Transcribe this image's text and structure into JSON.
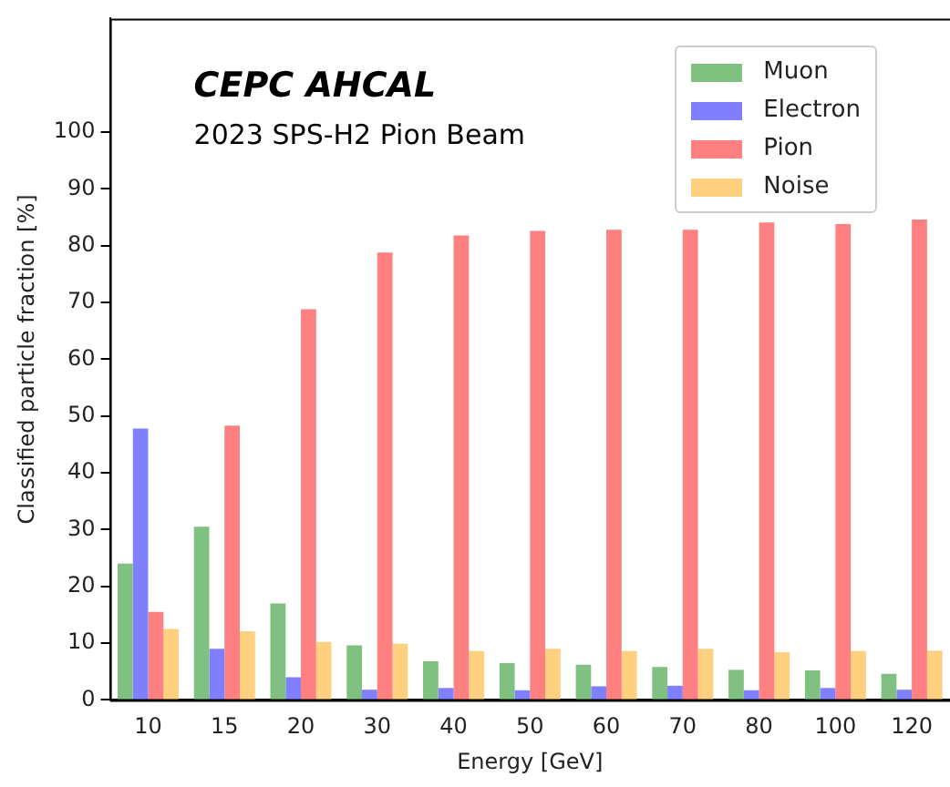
{
  "chart_data": {
    "type": "bar",
    "title": "CEPC AHCAL",
    "subtitle": "2023 SPS-H2 Pion Beam",
    "xlabel": "Energy [GeV]",
    "ylabel": "Classified particle fraction [%]",
    "categories": [
      "10",
      "15",
      "20",
      "30",
      "40",
      "50",
      "60",
      "70",
      "80",
      "100",
      "120"
    ],
    "series": [
      {
        "name": "Muon",
        "color": "#80c080",
        "values": [
          24,
          30.5,
          17,
          9.6,
          6.8,
          6.5,
          6.2,
          5.8,
          5.3,
          5.2,
          4.6
        ]
      },
      {
        "name": "Electron",
        "color": "#8080ff",
        "values": [
          47.8,
          9,
          4,
          1.8,
          2.1,
          1.7,
          2.4,
          2.5,
          1.7,
          2.1,
          1.8
        ]
      },
      {
        "name": "Pion",
        "color": "#ff8080",
        "values": [
          15.5,
          48.3,
          68.8,
          78.8,
          81.8,
          82.6,
          82.8,
          82.8,
          84.1,
          83.8,
          84.6
        ]
      },
      {
        "name": "Noise",
        "color": "#ffd080",
        "values": [
          12.5,
          12.1,
          10.2,
          9.9,
          8.6,
          9,
          8.6,
          9,
          8.4,
          8.6,
          8.7
        ]
      }
    ],
    "ylim": [
      0,
      120
    ],
    "yticks": [
      0,
      10,
      20,
      30,
      40,
      50,
      60,
      70,
      80,
      90,
      100
    ],
    "legend": "top right",
    "grid": false
  }
}
